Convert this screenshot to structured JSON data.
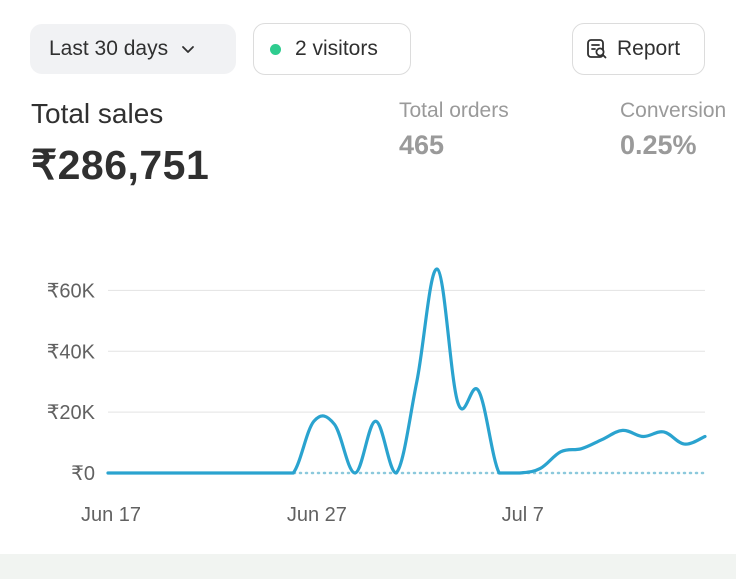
{
  "toolbar": {
    "date_range_label": "Last 30 days",
    "visitors_label": "2 visitors",
    "report_label": "Report"
  },
  "metrics": {
    "total_sales": {
      "label": "Total sales",
      "value": "₹286,751"
    },
    "total_orders": {
      "label": "Total orders",
      "value": "465"
    },
    "conversion": {
      "label": "Conversion",
      "value": "0.25%"
    }
  },
  "icons": {
    "date_chevron": "chevron-down-icon",
    "visitor_dot": "status-dot-icon",
    "report": "report-search-icon"
  },
  "colors": {
    "accent_line": "#2aa3cf",
    "visitor_dot": "#2ecc8f",
    "text_primary": "#303030",
    "text_muted": "#9a9a9a"
  },
  "chart_data": {
    "type": "line",
    "x_ticks": [
      "Jun 17",
      "Jun 27",
      "Jul 7"
    ],
    "y_ticks": [
      "₹0",
      "₹20K",
      "₹40K",
      "₹60K"
    ],
    "ylim": [
      0,
      70000
    ],
    "series": [
      {
        "name": "",
        "x": [
          "Jun 17",
          "Jun 18",
          "Jun 19",
          "Jun 20",
          "Jun 21",
          "Jun 22",
          "Jun 23",
          "Jun 24",
          "Jun 25",
          "Jun 26",
          "Jun 27",
          "Jun 28",
          "Jun 29",
          "Jun 30",
          "Jul 1",
          "Jul 2",
          "Jul 3",
          "Jul 4",
          "Jul 5",
          "Jul 6",
          "Jul 7",
          "Jul 8",
          "Jul 9",
          "Jul 10",
          "Jul 11",
          "Jul 12",
          "Jul 13",
          "Jul 14",
          "Jul 15",
          "Jul 16"
        ],
        "values": [
          0,
          0,
          0,
          0,
          0,
          0,
          0,
          0,
          0,
          0,
          17000,
          16000,
          0,
          17000,
          0,
          30000,
          67000,
          23000,
          27000,
          0,
          0,
          1500,
          7000,
          8000,
          11000,
          14000,
          12000,
          13500,
          9500,
          12000
        ]
      },
      {
        "name": "",
        "style": "dotted",
        "x": [
          "Jun 17",
          "Jul 16"
        ],
        "values": [
          0,
          0
        ]
      }
    ],
    "grid": true
  }
}
